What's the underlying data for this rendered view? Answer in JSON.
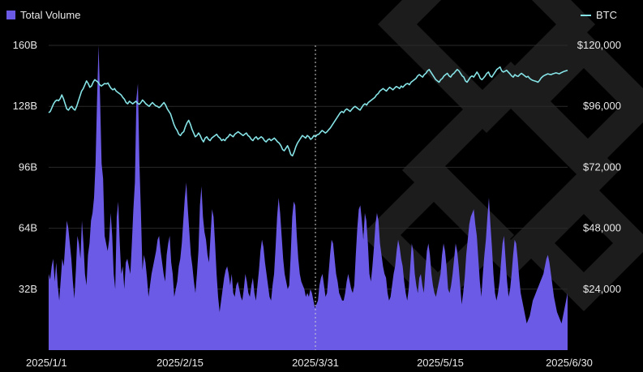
{
  "colors": {
    "volume": "#6a5ae6",
    "btc": "#86e3e6",
    "background": "#000000",
    "grid": "#2a2a2a",
    "watermark": "#1c1c1c"
  },
  "legend": {
    "volume_label": "Total Volume",
    "btc_label": "BTC"
  },
  "chart_data": {
    "type": "area",
    "xlabels": [
      "2025/1/1",
      "2025/2/15",
      "2025/3/31",
      "2025/5/15",
      "2025/6/30"
    ],
    "left_axis": {
      "ticks": [
        "160B",
        "128B",
        "96B",
        "64B",
        "32B"
      ],
      "range": [
        0,
        160
      ]
    },
    "right_axis": {
      "ticks": [
        "$120,000",
        "$96,000",
        "$72,000",
        "$48,000",
        "$24,000"
      ],
      "range": [
        0,
        120000
      ]
    },
    "crosshair_date": "2025/3/31",
    "series": [
      {
        "name": "Total Volume",
        "unit": "B",
        "values": [
          40,
          37,
          44,
          48,
          36,
          46,
          34,
          26,
          37,
          48,
          44,
          56,
          68,
          64,
          56,
          48,
          36,
          27,
          42,
          60,
          56,
          48,
          68,
          56,
          40,
          34,
          50,
          56,
          68,
          72,
          80,
          98,
          132,
          160,
          132,
          98,
          90,
          60,
          56,
          52,
          58,
          72,
          60,
          40,
          32,
          70,
          78,
          56,
          40,
          44,
          32,
          46,
          48,
          44,
          40,
          56,
          74,
          88,
          132,
          140,
          98,
          72,
          42,
          50,
          46,
          38,
          28,
          34,
          40,
          44,
          48,
          52,
          58,
          60,
          52,
          46,
          40,
          36,
          50,
          56,
          60,
          46,
          40,
          28,
          32,
          36,
          44,
          48,
          56,
          68,
          80,
          88,
          74,
          62,
          50,
          44,
          36,
          30,
          40,
          52,
          76,
          86,
          70,
          62,
          58,
          50,
          46,
          60,
          74,
          70,
          56,
          40,
          28,
          20,
          26,
          32,
          38,
          42,
          44,
          40,
          34,
          40,
          30,
          28,
          34,
          36,
          32,
          28,
          26,
          32,
          40,
          36,
          30,
          28,
          34,
          38,
          30,
          26,
          34,
          42,
          52,
          58,
          54,
          46,
          40,
          34,
          28,
          26,
          34,
          40,
          54,
          70,
          80,
          72,
          60,
          48,
          40,
          36,
          32,
          34,
          50,
          70,
          78,
          76,
          60,
          48,
          40,
          36,
          34,
          32,
          28,
          30,
          28,
          32,
          30,
          26,
          22,
          24,
          26,
          34,
          38,
          40,
          34,
          28,
          30,
          40,
          50,
          58,
          56,
          48,
          40,
          36,
          30,
          28,
          26,
          26,
          30,
          36,
          40,
          36,
          32,
          30,
          34,
          50,
          64,
          74,
          76,
          68,
          58,
          72,
          68,
          56,
          40,
          36,
          44,
          54,
          66,
          72,
          68,
          56,
          50,
          44,
          40,
          38,
          30,
          26,
          28,
          34,
          40,
          44,
          52,
          58,
          54,
          48,
          44,
          36,
          30,
          26,
          32,
          44,
          56,
          52,
          40,
          34,
          30,
          38,
          40,
          34,
          30,
          42,
          52,
          56,
          50,
          40,
          34,
          30,
          28,
          32,
          36,
          40,
          50,
          56,
          52,
          44,
          32,
          30,
          34,
          40,
          48,
          56,
          52,
          44,
          34,
          24,
          30,
          38,
          50,
          58,
          66,
          70,
          72,
          74,
          66,
          60,
          48,
          36,
          28,
          40,
          50,
          58,
          70,
          80,
          66,
          54,
          40,
          30,
          26,
          30,
          36,
          46,
          56,
          60,
          48,
          36,
          28,
          32,
          40,
          50,
          58,
          56,
          48,
          38,
          30,
          26,
          22,
          18,
          14,
          16,
          18,
          22,
          26,
          28,
          30,
          32,
          34,
          36,
          38,
          40,
          44,
          48,
          50,
          46,
          40,
          34,
          28,
          24,
          20,
          18,
          16,
          14,
          18,
          22,
          26,
          30
        ]
      },
      {
        "name": "BTC",
        "unit": "USD",
        "values": [
          93500,
          94000,
          95500,
          97000,
          98000,
          98500,
          98200,
          99000,
          100500,
          99000,
          97000,
          95000,
          94500,
          95500,
          96000,
          95000,
          94500,
          96000,
          98000,
          100000,
          102000,
          103000,
          104500,
          106000,
          105000,
          103500,
          104000,
          105500,
          106500,
          106000,
          105500,
          104500,
          104000,
          104500,
          105000,
          104800,
          105200,
          104000,
          103000,
          102500,
          103000,
          102000,
          101500,
          101000,
          100500,
          99500,
          98800,
          97500,
          97000,
          98000,
          97500,
          97000,
          97500,
          98000,
          97200,
          96800,
          97500,
          98500,
          97800,
          97000,
          96500,
          96000,
          96800,
          97500,
          96800,
          96200,
          96000,
          95500,
          96000,
          96800,
          97500,
          96500,
          95000,
          94000,
          93000,
          91000,
          89000,
          87500,
          86500,
          85000,
          84500,
          85500,
          86000,
          88000,
          89500,
          90500,
          89000,
          87000,
          85500,
          84000,
          84500,
          85500,
          84500,
          83000,
          82000,
          83500,
          84000,
          83000,
          82500,
          83500,
          84000,
          84500,
          85000,
          84000,
          83500,
          82500,
          83000,
          82500,
          83500,
          84000,
          85000,
          84500,
          84000,
          85000,
          85500,
          86000,
          85500,
          85000,
          84500,
          85000,
          85500,
          84500,
          84000,
          83000,
          82500,
          83500,
          84000,
          83000,
          83500,
          84000,
          83500,
          82500,
          82000,
          82800,
          83200,
          82500,
          83000,
          83500,
          82800,
          82000,
          81500,
          80500,
          79000,
          78500,
          79500,
          80500,
          79000,
          77000,
          76500,
          78000,
          80000,
          81500,
          82500,
          83500,
          84500,
          84000,
          83500,
          84500,
          84000,
          83000,
          83500,
          84500,
          84000,
          84800,
          85000,
          85800,
          86500,
          86000,
          85500,
          86000,
          86800,
          87500,
          88500,
          89500,
          90500,
          91500,
          92500,
          93500,
          94000,
          93500,
          94500,
          95000,
          94500,
          94000,
          94800,
          95500,
          96000,
          95500,
          95000,
          94500,
          95500,
          96500,
          97000,
          96500,
          97500,
          98000,
          98500,
          99000,
          99500,
          100500,
          101000,
          102000,
          102500,
          103000,
          102500,
          102000,
          102800,
          103500,
          103000,
          102500,
          103200,
          103800,
          103500,
          103000,
          104000,
          103500,
          104200,
          104800,
          105000,
          104500,
          105500,
          106000,
          106500,
          107000,
          108000,
          108500,
          108000,
          107500,
          108500,
          109000,
          110000,
          110500,
          109500,
          108500,
          107500,
          106500,
          106000,
          105500,
          106500,
          107000,
          108000,
          108500,
          109000,
          108000,
          107500,
          108500,
          109000,
          109800,
          110500,
          110000,
          109000,
          108000,
          107500,
          106000,
          105500,
          106500,
          107500,
          108000,
          107500,
          108500,
          109500,
          108500,
          107000,
          106500,
          107200,
          108000,
          109000,
          109500,
          108000,
          107500,
          108500,
          109500,
          110500,
          111000,
          111500,
          110000,
          109500,
          109800,
          110200,
          109500,
          108800,
          108000,
          107500,
          108500,
          108000,
          107800,
          108500,
          109000,
          108500,
          108000,
          107500,
          107800,
          107000,
          106500,
          106200,
          106000,
          105800,
          105500,
          106200,
          107200,
          107800,
          108200,
          108500,
          108800,
          108600,
          108500,
          108800,
          109000,
          109200,
          109000,
          108800,
          109200,
          109500,
          109800,
          110000,
          110200
        ]
      }
    ]
  }
}
